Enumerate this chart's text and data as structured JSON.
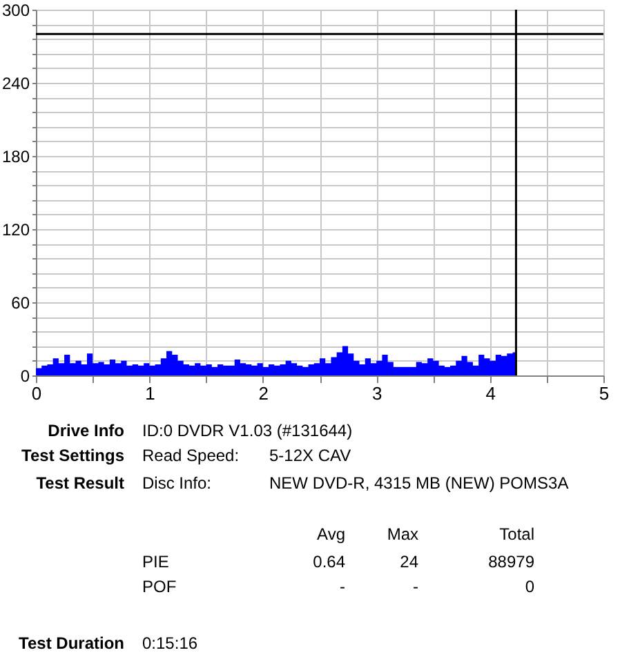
{
  "chart_data": {
    "type": "area",
    "x": [
      0,
      0.05,
      0.1,
      0.15,
      0.2,
      0.25,
      0.3,
      0.35,
      0.4,
      0.45,
      0.5,
      0.55,
      0.6,
      0.65,
      0.7,
      0.75,
      0.8,
      0.85,
      0.9,
      0.95,
      1,
      1.05,
      1.1,
      1.15,
      1.2,
      1.25,
      1.3,
      1.35,
      1.4,
      1.45,
      1.5,
      1.55,
      1.6,
      1.65,
      1.7,
      1.75,
      1.8,
      1.85,
      1.9,
      1.95,
      2,
      2.05,
      2.1,
      2.15,
      2.2,
      2.25,
      2.3,
      2.35,
      2.4,
      2.45,
      2.5,
      2.55,
      2.6,
      2.65,
      2.7,
      2.75,
      2.8,
      2.85,
      2.9,
      2.95,
      3,
      3.05,
      3.1,
      3.15,
      3.2,
      3.25,
      3.3,
      3.35,
      3.4,
      3.45,
      3.5,
      3.55,
      3.6,
      3.65,
      3.7,
      3.75,
      3.8,
      3.85,
      3.9,
      3.95,
      4,
      4.05,
      4.1,
      4.15,
      4.2,
      4.23
    ],
    "series": [
      {
        "color": "#0000ff",
        "values": [
          6,
          8,
          9,
          14,
          10,
          17,
          10,
          12,
          9,
          18,
          10,
          11,
          9,
          13,
          10,
          12,
          8,
          9,
          8,
          10,
          8,
          9,
          14,
          20,
          17,
          12,
          9,
          8,
          10,
          8,
          9,
          7,
          9,
          8,
          8,
          13,
          10,
          9,
          8,
          10,
          7,
          9,
          8,
          9,
          12,
          10,
          8,
          7,
          9,
          10,
          14,
          10,
          15,
          19,
          24,
          18,
          12,
          9,
          14,
          10,
          12,
          17,
          11,
          7,
          7,
          7,
          7,
          11,
          10,
          14,
          12,
          8,
          7,
          8,
          12,
          16,
          11,
          8,
          17,
          14,
          12,
          17,
          16,
          18,
          19,
          19
        ]
      }
    ],
    "xlim": [
      0,
      5
    ],
    "xticks": [
      0,
      {
        "value": 0.5,
        "label": null
      },
      1,
      {
        "value": 1.5,
        "label": null
      },
      2,
      {
        "value": 2.5,
        "label": null
      },
      3,
      {
        "value": 3.5,
        "label": null
      },
      4,
      {
        "value": 4.5,
        "label": null
      },
      5
    ],
    "ylim": [
      0,
      300
    ],
    "yticks": [
      0,
      {
        "value": 12,
        "label": null
      },
      {
        "value": 24,
        "label": null
      },
      {
        "value": 36,
        "label": null
      },
      {
        "value": 48,
        "label": null
      },
      60,
      {
        "value": 72,
        "label": null
      },
      {
        "value": 84,
        "label": null
      },
      {
        "value": 96,
        "label": null
      },
      {
        "value": 108,
        "label": null
      },
      120,
      {
        "value": 132,
        "label": null
      },
      {
        "value": 144,
        "label": null
      },
      {
        "value": 156,
        "label": null
      },
      {
        "value": 168,
        "label": null
      },
      180,
      {
        "value": 192,
        "label": null
      },
      {
        "value": 204,
        "label": null
      },
      {
        "value": 216,
        "label": null
      },
      {
        "value": 228,
        "label": null
      },
      240,
      {
        "value": 252,
        "label": null
      },
      {
        "value": 264,
        "label": null
      },
      {
        "value": 276,
        "label": null
      },
      {
        "value": 288,
        "label": null
      },
      300
    ],
    "grid": true,
    "ref_lines": [
      {
        "axis": "y",
        "value": 280,
        "label": null,
        "color": "#000000"
      },
      {
        "axis": "x",
        "value": 4.23,
        "label": null,
        "color": "#000000"
      }
    ],
    "annotations": [
      "Drive Info",
      "ID:0 DVDR V1.03 (#131644)",
      "Test Settings",
      "Read Speed:",
      "5-12X CAV",
      "Test Result",
      "Disc Info:",
      "NEW DVD-R, 4315 MB (NEW) POMS3A",
      "Avg",
      "Max",
      "Total",
      "PIE",
      "0.64",
      "24",
      "88979",
      "POF",
      "-",
      "-",
      "0",
      "Test Duration",
      "0:15:16"
    ]
  }
}
